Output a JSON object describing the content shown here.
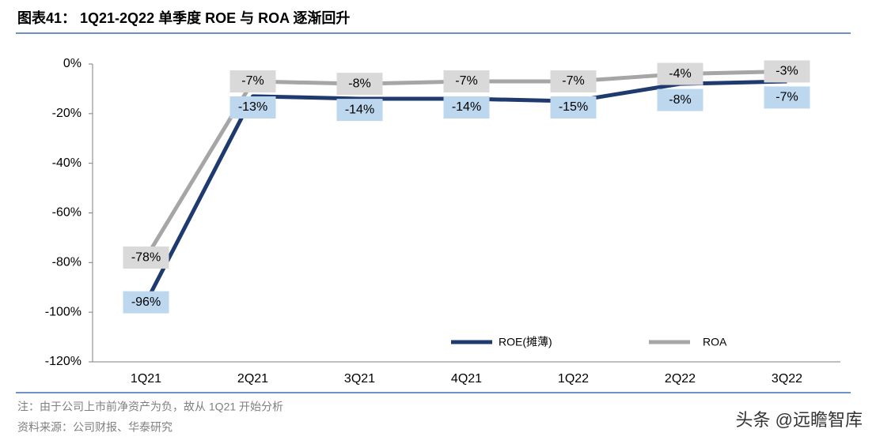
{
  "chart_data": {
    "type": "line",
    "title": "图表41： 1Q21-2Q22 单季度 ROE 与 ROA 逐渐回升",
    "categories": [
      "1Q21",
      "2Q21",
      "3Q21",
      "4Q21",
      "1Q22",
      "2Q22",
      "3Q22"
    ],
    "series": [
      {
        "name": "ROE(摊薄)",
        "color": "#1f3a6e",
        "label_color": "#bdd7ee",
        "values": [
          -96,
          -13,
          -14,
          -14,
          -15,
          -8,
          -7
        ],
        "value_labels": [
          "-96%",
          "-13%",
          "-14%",
          "-14%",
          "-15%",
          "-8%",
          "-7%"
        ]
      },
      {
        "name": "ROA",
        "color": "#a6a6a6",
        "label_color": "#d9d9d9",
        "values": [
          -78,
          -7,
          -8,
          -7,
          -7,
          -4,
          -3
        ],
        "value_labels": [
          "-78%",
          "-7%",
          "-8%",
          "-7%",
          "-7%",
          "-4%",
          "-3%"
        ]
      }
    ],
    "ylim": [
      -120,
      0
    ],
    "yticks": [
      {
        "value": 0,
        "label": "0%"
      },
      {
        "value": -20,
        "label": "-20%"
      },
      {
        "value": -40,
        "label": "-40%"
      },
      {
        "value": -60,
        "label": "-60%"
      },
      {
        "value": -80,
        "label": "-80%"
      },
      {
        "value": -100,
        "label": "-100%"
      },
      {
        "value": -120,
        "label": "-120%"
      }
    ],
    "legend": "lower right",
    "notes": [
      "注：由于公司上市前净资产为负，故从 1Q21 开始分析",
      "资料来源：公司财报、华泰研究"
    ],
    "watermark": "头条 @远瞻智库"
  }
}
